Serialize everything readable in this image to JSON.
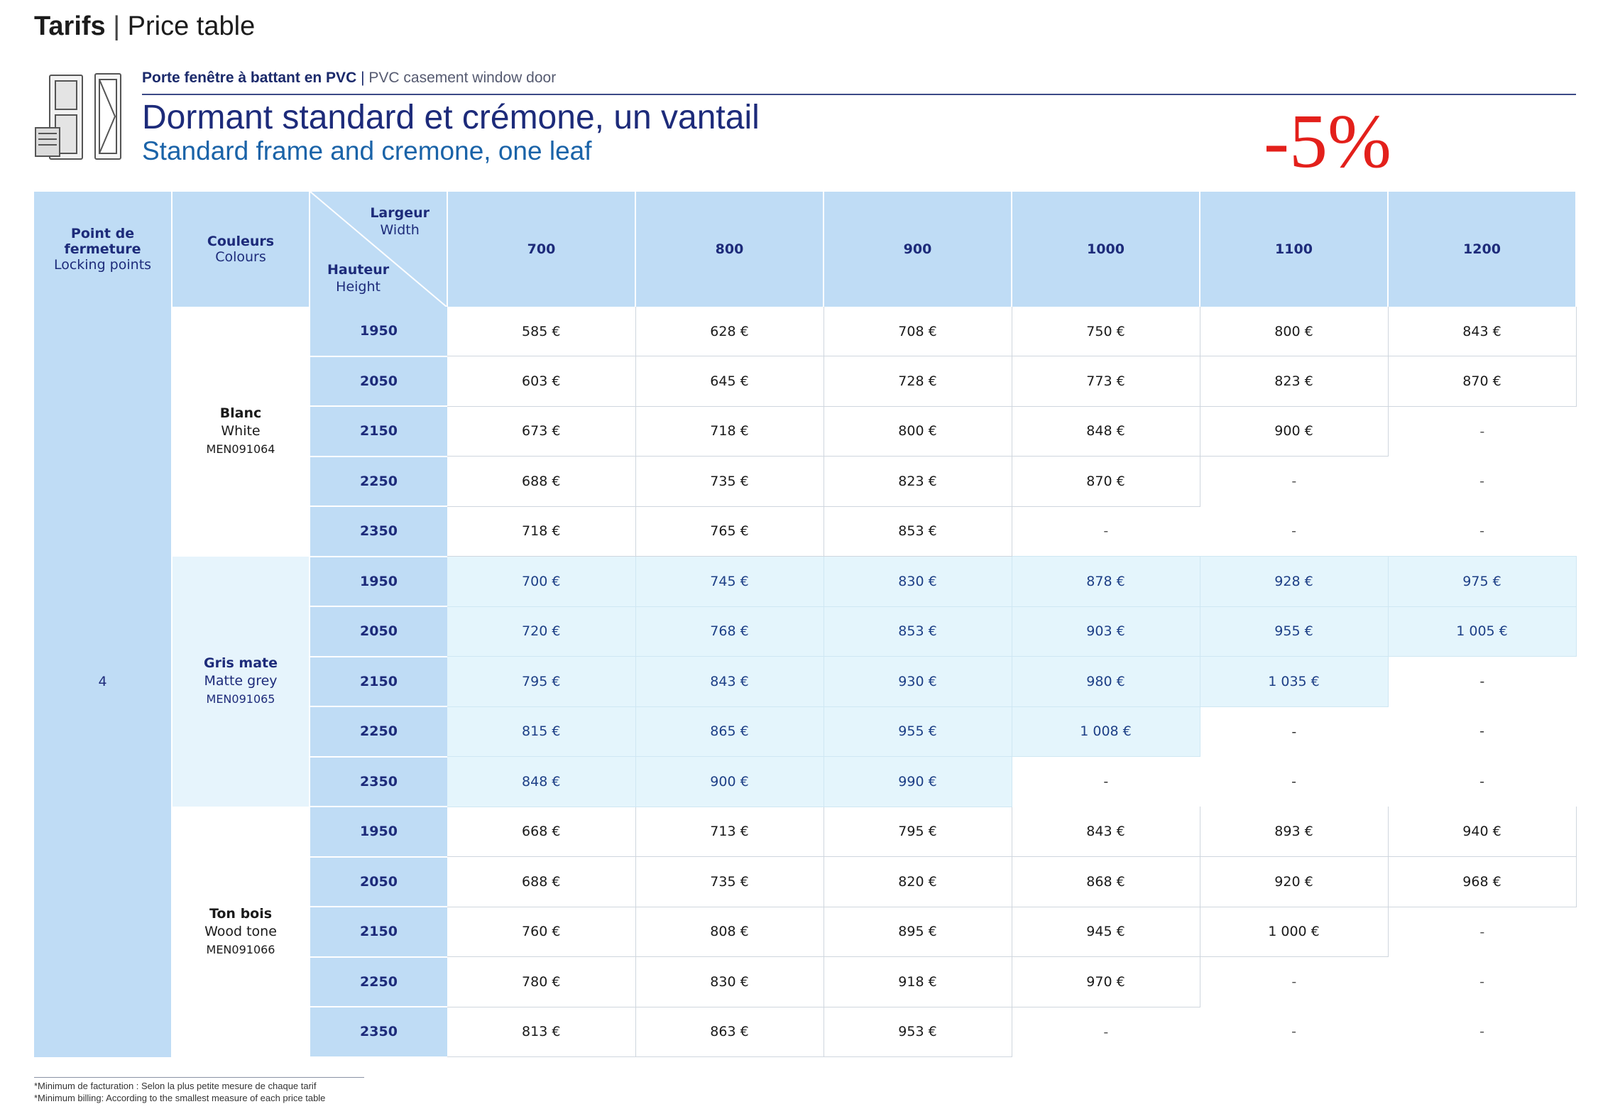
{
  "header": {
    "title_bold": "Tarifs",
    "title_separator": "|",
    "title_rest": "Price table",
    "product_type_fr": "Porte fenêtre à battant en PVC",
    "product_type_separator": "|",
    "product_type_en": "PVC casement window door",
    "title_fr": "Dormant standard et crémone, un vantail",
    "title_en": "Standard frame and cremone, one leaf",
    "discount": "-5%",
    "icon": "window-frame-profile-icon"
  },
  "table": {
    "headers": {
      "locking_fr": "Point de fermeture",
      "locking_en": "Locking points",
      "colours_fr": "Couleurs",
      "colours_en": "Colours",
      "width_fr": "Largeur",
      "width_en": "Width",
      "height_fr": "Hauteur",
      "height_en": "Height",
      "widths": [
        "700",
        "800",
        "900",
        "1000",
        "1100",
        "1200"
      ]
    },
    "locking_points": "4",
    "groups": [
      {
        "name_fr": "Blanc",
        "name_en": "White",
        "code": "MEN091064",
        "rows": [
          {
            "height": "1950",
            "prices": [
              "585 €",
              "628 €",
              "708 €",
              "750 €",
              "800 €",
              "843 €"
            ]
          },
          {
            "height": "2050",
            "prices": [
              "603 €",
              "645 €",
              "728 €",
              "773 €",
              "823 €",
              "870 €"
            ]
          },
          {
            "height": "2150",
            "prices": [
              "673 €",
              "718 €",
              "800 €",
              "848 €",
              "900 €",
              "-"
            ]
          },
          {
            "height": "2250",
            "prices": [
              "688 €",
              "735 €",
              "823 €",
              "870 €",
              "-",
              "-"
            ]
          },
          {
            "height": "2350",
            "prices": [
              "718 €",
              "765 €",
              "853 €",
              "-",
              "-",
              "-"
            ]
          }
        ]
      },
      {
        "name_fr": "Gris mate",
        "name_en": "Matte grey",
        "code": "MEN091065",
        "rows": [
          {
            "height": "1950",
            "prices": [
              "700 €",
              "745 €",
              "830 €",
              "878 €",
              "928 €",
              "975 €"
            ]
          },
          {
            "height": "2050",
            "prices": [
              "720 €",
              "768 €",
              "853 €",
              "903 €",
              "955 €",
              "1 005 €"
            ]
          },
          {
            "height": "2150",
            "prices": [
              "795 €",
              "843 €",
              "930 €",
              "980 €",
              "1 035 €",
              "-"
            ]
          },
          {
            "height": "2250",
            "prices": [
              "815 €",
              "865 €",
              "955 €",
              "1 008 €",
              "-",
              "-"
            ]
          },
          {
            "height": "2350",
            "prices": [
              "848 €",
              "900 €",
              "990 €",
              "-",
              "-",
              "-"
            ]
          }
        ]
      },
      {
        "name_fr": "Ton bois",
        "name_en": "Wood tone",
        "code": "MEN091066",
        "rows": [
          {
            "height": "1950",
            "prices": [
              "668 €",
              "713 €",
              "795 €",
              "843 €",
              "893 €",
              "940 €"
            ]
          },
          {
            "height": "2050",
            "prices": [
              "688 €",
              "735 €",
              "820 €",
              "868 €",
              "920 €",
              "968 €"
            ]
          },
          {
            "height": "2150",
            "prices": [
              "760 €",
              "808 €",
              "895 €",
              "945 €",
              "1 000 €",
              "-"
            ]
          },
          {
            "height": "2250",
            "prices": [
              "780 €",
              "830 €",
              "918 €",
              "970 €",
              "-",
              "-"
            ]
          },
          {
            "height": "2350",
            "prices": [
              "813 €",
              "863 €",
              "953 €",
              "-",
              "-",
              "-"
            ]
          }
        ]
      }
    ]
  },
  "footnote": {
    "line_fr": "*Minimum de facturation : Selon la plus petite mesure de chaque tarif",
    "line_en": "*Minimum billing: According to the smallest measure of each price table"
  },
  "colors": {
    "header_blue": "#bfdcf5",
    "grey_group_bg": "#e4f5fc",
    "title_navy": "#1d2b7a",
    "subtitle_blue": "#1a63a8",
    "discount_red": "#e3201b"
  }
}
